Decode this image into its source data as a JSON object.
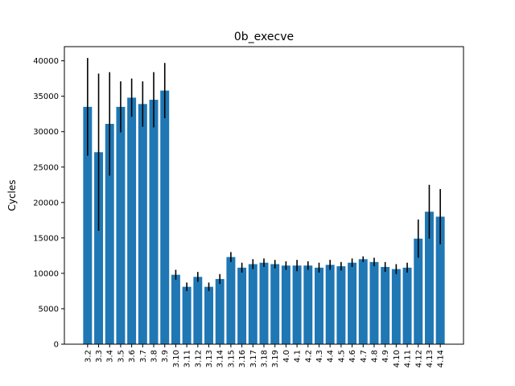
{
  "chart_data": {
    "type": "bar",
    "title": "0b_execve",
    "xlabel": "",
    "ylabel": "Cycles",
    "ylim": [
      0,
      42000
    ],
    "yticks": [
      0,
      5000,
      10000,
      15000,
      20000,
      25000,
      30000,
      35000,
      40000
    ],
    "ytick_labels": [
      "0",
      "5000",
      "10000",
      "15000",
      "20000",
      "25000",
      "30000",
      "35000",
      "40000"
    ],
    "categories": [
      "3.2",
      "3.3",
      "3.4",
      "3.5",
      "3.6",
      "3.7",
      "3.8",
      "3.9",
      "3.10",
      "3.11",
      "3.12",
      "3.13",
      "3.14",
      "3.15",
      "3.16",
      "3.17",
      "3.18",
      "3.19",
      "4.0",
      "4.1",
      "4.2",
      "4.3",
      "4.4",
      "4.5",
      "4.6",
      "4.7",
      "4.8",
      "4.9",
      "4.10",
      "4.11",
      "4.12",
      "4.13",
      "4.14"
    ],
    "values": [
      33500,
      27100,
      31100,
      33500,
      34800,
      33900,
      34500,
      35800,
      9800,
      8100,
      9500,
      8100,
      9200,
      12300,
      10800,
      11300,
      11500,
      11300,
      11100,
      11100,
      11100,
      10800,
      11200,
      11000,
      11500,
      12000,
      11600,
      10900,
      10600,
      10800,
      14900,
      18700,
      18000
    ],
    "errors": [
      6900,
      11100,
      7300,
      3600,
      2700,
      3200,
      3900,
      3900,
      700,
      600,
      700,
      600,
      700,
      700,
      700,
      700,
      600,
      600,
      600,
      800,
      600,
      700,
      700,
      600,
      600,
      400,
      600,
      700,
      700,
      700,
      2700,
      3800,
      3900
    ],
    "bar_color": "#1f77b4",
    "error_color": "#000000"
  }
}
